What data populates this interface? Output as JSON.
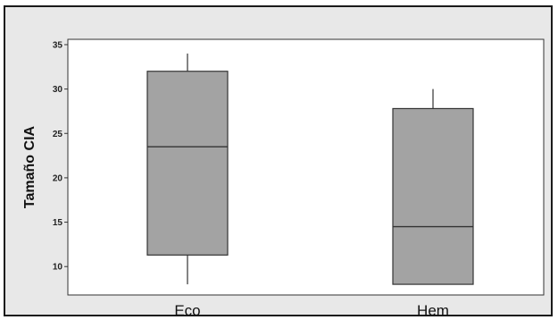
{
  "chart_data": {
    "type": "boxplot",
    "ylabel": "Tamaño CIA",
    "categories": [
      "Eco",
      "Hem"
    ],
    "yticks": [
      10,
      15,
      20,
      25,
      30,
      35
    ],
    "ylim": [
      6.8,
      35.6
    ],
    "grid": false,
    "series": [
      {
        "category": "Eco",
        "min": 8,
        "q1": 11.3,
        "median": 23.5,
        "q3": 32,
        "max": 34
      },
      {
        "category": "Hem",
        "min": 8,
        "q1": 8,
        "median": 14.5,
        "q3": 27.8,
        "max": 30
      }
    ],
    "colors": {
      "box": "#a3a3a3",
      "outer_bg": "#e8e8e8",
      "plot_bg": "#ffffff",
      "stroke": "#333333"
    }
  }
}
